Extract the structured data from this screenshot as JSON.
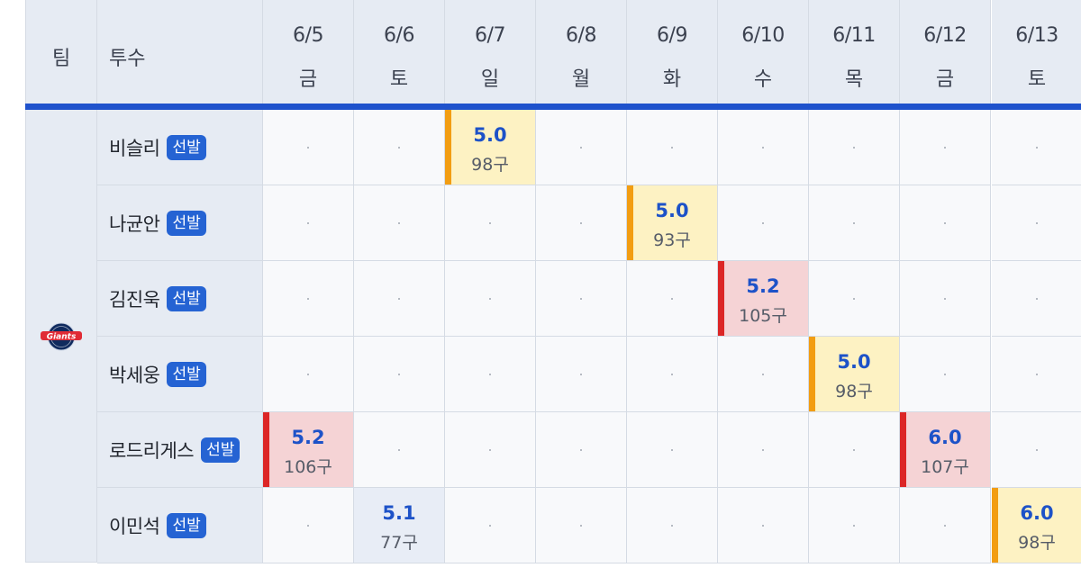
{
  "header": {
    "team_label": "팀",
    "pitcher_label": "투수"
  },
  "dates": [
    {
      "date": "6/5",
      "day": "금"
    },
    {
      "date": "6/6",
      "day": "토"
    },
    {
      "date": "6/7",
      "day": "일"
    },
    {
      "date": "6/8",
      "day": "월"
    },
    {
      "date": "6/9",
      "day": "화"
    },
    {
      "date": "6/10",
      "day": "수"
    },
    {
      "date": "6/11",
      "day": "목"
    },
    {
      "date": "6/12",
      "day": "금"
    },
    {
      "date": "6/13",
      "day": "토"
    }
  ],
  "team": {
    "name": "Giants",
    "logo_icon": "giants-logo-icon"
  },
  "starter_badge": "선발",
  "colors": {
    "header_bg": "#e6ebf3",
    "accent_blue": "#1f52cc",
    "badge_blue": "#2563d3",
    "highlight_yellow": "#fdf2c3",
    "highlight_pink": "#f5d3d5",
    "accent_orange": "#f29d12",
    "accent_red": "#dc2626"
  },
  "pitchers": [
    {
      "name": "비슬리",
      "badge": "선발",
      "games": [
        {
          "col": 2,
          "innings": "5.0",
          "pitches": "98구",
          "style": "yellow"
        }
      ]
    },
    {
      "name": "나균안",
      "badge": "선발",
      "games": [
        {
          "col": 4,
          "innings": "5.0",
          "pitches": "93구",
          "style": "yellow"
        }
      ]
    },
    {
      "name": "김진욱",
      "badge": "선발",
      "games": [
        {
          "col": 5,
          "innings": "5.2",
          "pitches": "105구",
          "style": "pink"
        }
      ]
    },
    {
      "name": "박세웅",
      "badge": "선발",
      "games": [
        {
          "col": 6,
          "innings": "5.0",
          "pitches": "98구",
          "style": "yellow"
        }
      ]
    },
    {
      "name": "로드리게스",
      "badge": "선발",
      "games": [
        {
          "col": 0,
          "innings": "5.2",
          "pitches": "106구",
          "style": "pink"
        },
        {
          "col": 7,
          "innings": "6.0",
          "pitches": "107구",
          "style": "pink"
        }
      ]
    },
    {
      "name": "이민석",
      "badge": "선발",
      "games": [
        {
          "col": 1,
          "innings": "5.1",
          "pitches": "77구",
          "style": "blue"
        },
        {
          "col": 8,
          "innings": "6.0",
          "pitches": "98구",
          "style": "yellow"
        }
      ]
    }
  ]
}
